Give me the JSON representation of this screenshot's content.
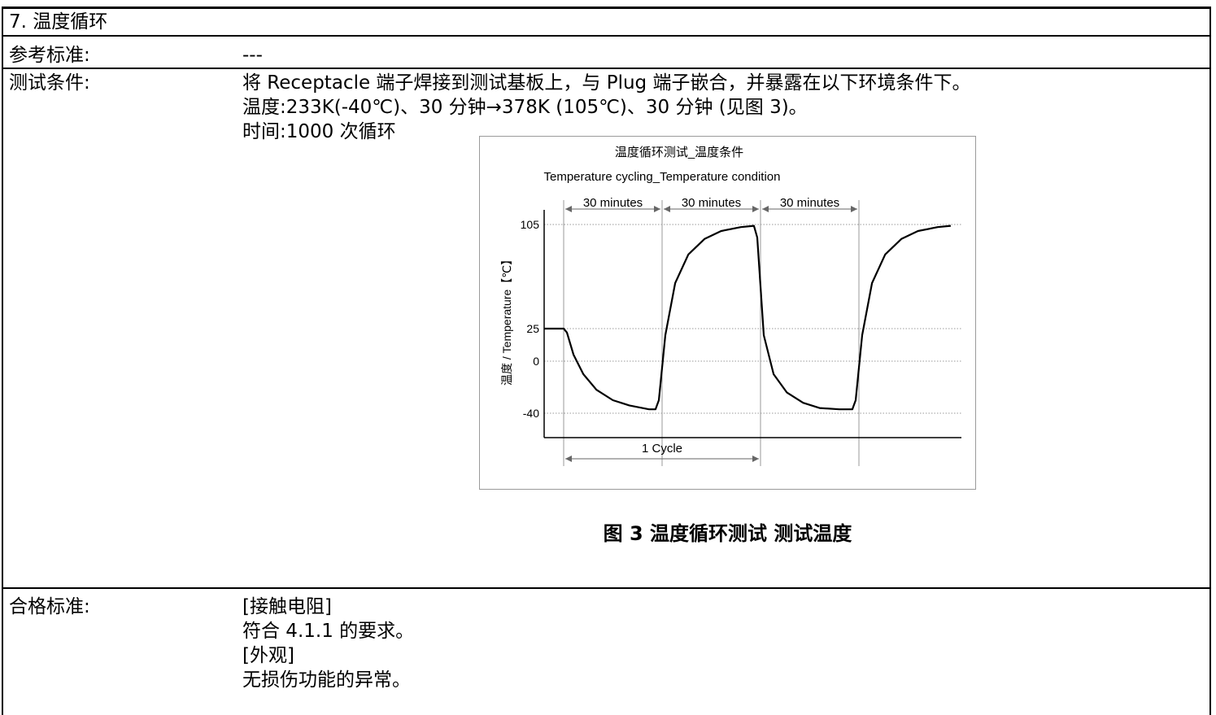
{
  "section": {
    "title": "7. 温度循环"
  },
  "rows": {
    "reference": {
      "label": "参考标准:",
      "value": "---"
    },
    "conditions": {
      "label": "测试条件:",
      "lines": [
        "将 Receptacle 端子焊接到测试基板上，与 Plug 端子嵌合，并暴露在以下环境条件下。",
        "温度:233K(-40℃)、30 分钟→378K (105℃)、30 分钟 (见图 3)。",
        "时间:1000 次循环"
      ]
    },
    "criteria": {
      "label": "合格标准:",
      "lines": [
        "[接触电阻]",
        "符合 4.1.1 的要求。",
        "[外观]",
        "无损伤功能的异常。"
      ]
    }
  },
  "figure": {
    "caption": "图 3 温度循环测试 测试温度"
  },
  "chart_data": {
    "type": "line",
    "title": "温度循环测试_温度条件",
    "subtitle": "Temperature cycling_Temperature condition",
    "ylabel": "温度 / Temperature【℃】",
    "xlabel": "",
    "yticks": [
      105,
      25,
      0,
      -40
    ],
    "ylim": [
      -60,
      120
    ],
    "grid": "horizontal dotted at ticks",
    "phase_labels": [
      "30 minutes",
      "30 minutes",
      "30 minutes"
    ],
    "cycle_label": "1 Cycle",
    "x_unit": "minutes",
    "series": [
      {
        "x": [
          0,
          2,
          3,
          5,
          8,
          12,
          17,
          22,
          28,
          30,
          31,
          33,
          36,
          40,
          45,
          50,
          56,
          60,
          61,
          63,
          66,
          70,
          75,
          80,
          86,
          90,
          91,
          93,
          96,
          100,
          105,
          110,
          116,
          120
        ],
        "y": [
          25,
          25,
          22,
          5,
          -10,
          -22,
          -30,
          -34,
          -37,
          -37,
          -30,
          20,
          60,
          82,
          94,
          100,
          103,
          104,
          95,
          20,
          -10,
          -24,
          -32,
          -36,
          -37,
          -37,
          -30,
          20,
          60,
          82,
          94,
          100,
          103,
          104
        ]
      }
    ]
  }
}
